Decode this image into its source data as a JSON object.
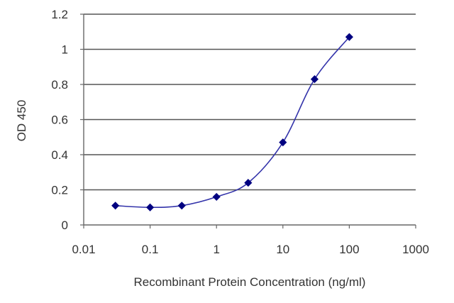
{
  "chart_data": {
    "type": "scatter",
    "xlabel": "Recombinant Protein Concentration (ng/ml)",
    "ylabel": "OD 450",
    "x_scale": "log",
    "xlim": [
      0.01,
      1000
    ],
    "ylim": [
      0,
      1.2
    ],
    "x_ticks": [
      "0.01",
      "0.1",
      "1",
      "10",
      "100",
      "1000"
    ],
    "y_ticks": [
      "0",
      "0.2",
      "0.4",
      "0.6",
      "0.8",
      "1",
      "1.2"
    ],
    "grid": "horizontal",
    "series": [
      {
        "x": [
          0.03,
          0.1,
          0.3,
          1,
          3,
          10,
          30,
          100
        ],
        "y": [
          0.11,
          0.1,
          0.11,
          0.16,
          0.24,
          0.47,
          0.83,
          1.07
        ],
        "color": "#3333aa",
        "marker_color": "#000080",
        "style": "smooth line with diamond markers"
      }
    ]
  }
}
